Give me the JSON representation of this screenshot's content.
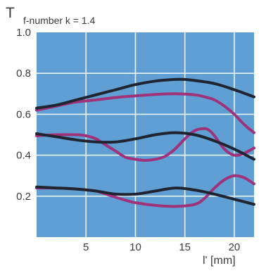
{
  "chart_data": {
    "type": "line",
    "title": "f-number k = 1.4",
    "ylabel": "T",
    "xlabel": "l' [mm]",
    "xlim": [
      0,
      22
    ],
    "ylim": [
      0,
      1.0
    ],
    "x_ticks": [
      5,
      10,
      15,
      20
    ],
    "y_ticks": [
      0.2,
      0.4,
      0.6,
      0.8,
      1.0
    ],
    "x_tick_labels": [
      "5",
      "10",
      "15",
      "20"
    ],
    "y_tick_labels": [
      "0.2",
      "0.4",
      "0.6",
      "0.8",
      "1.0"
    ],
    "grid": true,
    "colors": {
      "plot_background": "#5f9fd3",
      "grid": "#e8f2fb",
      "black_series": "#1f2430",
      "magenta_series": "#a0327a"
    },
    "series": [
      {
        "color": "black",
        "x": [
          0,
          2,
          4,
          6,
          8,
          10,
          12,
          14,
          15,
          16,
          18,
          20,
          22
        ],
        "y": [
          0.63,
          0.645,
          0.67,
          0.695,
          0.72,
          0.745,
          0.762,
          0.77,
          0.77,
          0.765,
          0.75,
          0.72,
          0.685
        ]
      },
      {
        "color": "magenta",
        "x": [
          0,
          2,
          4,
          6,
          8,
          10,
          12,
          14,
          16,
          17,
          18,
          19,
          20,
          21,
          22
        ],
        "y": [
          0.62,
          0.64,
          0.66,
          0.67,
          0.682,
          0.69,
          0.697,
          0.7,
          0.695,
          0.685,
          0.67,
          0.64,
          0.6,
          0.55,
          0.51
        ]
      },
      {
        "color": "black",
        "x": [
          0,
          2,
          4,
          6,
          8,
          10,
          12,
          14,
          16,
          18,
          20,
          22
        ],
        "y": [
          0.505,
          0.49,
          0.475,
          0.465,
          0.465,
          0.48,
          0.5,
          0.51,
          0.5,
          0.47,
          0.43,
          0.38
        ]
      },
      {
        "color": "magenta",
        "x": [
          0,
          2,
          4,
          5,
          6,
          7,
          8,
          9,
          10,
          11,
          12,
          13,
          14,
          15,
          16,
          17,
          17.5,
          18,
          19,
          20,
          21,
          22
        ],
        "y": [
          0.495,
          0.5,
          0.5,
          0.495,
          0.48,
          0.45,
          0.42,
          0.39,
          0.38,
          0.375,
          0.38,
          0.395,
          0.43,
          0.48,
          0.52,
          0.53,
          0.52,
          0.495,
          0.43,
          0.4,
          0.41,
          0.435
        ]
      },
      {
        "color": "black",
        "x": [
          0,
          2,
          4,
          6,
          8,
          10,
          12,
          14,
          16,
          18,
          20,
          22
        ],
        "y": [
          0.245,
          0.24,
          0.235,
          0.225,
          0.21,
          0.21,
          0.225,
          0.24,
          0.23,
          0.21,
          0.185,
          0.16
        ]
      },
      {
        "color": "magenta",
        "x": [
          0,
          2,
          4,
          6,
          7,
          8,
          9,
          10,
          12,
          14,
          16,
          17,
          18,
          19,
          20,
          21,
          22
        ],
        "y": [
          0.24,
          0.24,
          0.235,
          0.225,
          0.21,
          0.195,
          0.18,
          0.168,
          0.155,
          0.15,
          0.16,
          0.19,
          0.24,
          0.28,
          0.3,
          0.29,
          0.26
        ]
      }
    ]
  }
}
